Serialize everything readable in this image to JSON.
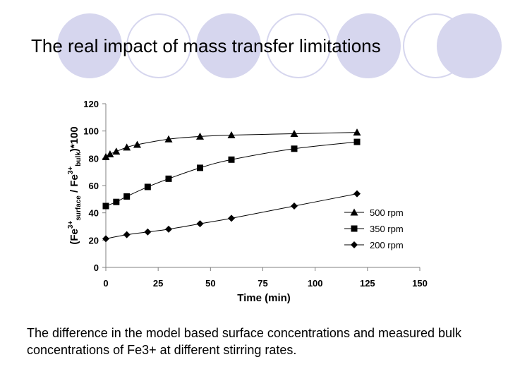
{
  "slide": {
    "title": "The real impact of mass transfer limitations",
    "caption": "The difference in the model based surface concentrations and measured bulk concentrations of Fe3+ at different stirring rates.",
    "accent_color": "#d6d6ee",
    "circle_colors": [
      "#d6d6ee",
      "#ffffff",
      "#d6d6ee",
      "#ffffff",
      "#d6d6ee",
      "#ffffff",
      "#d6d6ee"
    ]
  },
  "chart_data": {
    "type": "line",
    "title": "",
    "xlabel": "Time (min)",
    "ylabel_parts": {
      "open": "(Fe",
      "sup1": "3+",
      "sub1": "surface",
      "mid": " / Fe",
      "sup2": "3+",
      "sub2": "bulk",
      "close": ")*100"
    },
    "xlim": [
      0,
      150
    ],
    "ylim": [
      0,
      120
    ],
    "xticks": [
      "0",
      "25",
      "50",
      "75",
      "100",
      "125",
      "150"
    ],
    "yticks": [
      "0",
      "20",
      "40",
      "60",
      "80",
      "100",
      "120"
    ],
    "grid": false,
    "legend_position": "bottom-right",
    "series": [
      {
        "name": "500 rpm",
        "marker": "triangle",
        "x": [
          0,
          2,
          5,
          10,
          15,
          30,
          45,
          60,
          90,
          120
        ],
        "y": [
          81,
          83,
          85,
          88,
          90,
          94,
          96,
          97,
          98,
          99
        ]
      },
      {
        "name": "350 rpm",
        "marker": "square",
        "x": [
          0,
          5,
          10,
          20,
          30,
          45,
          60,
          90,
          120
        ],
        "y": [
          45,
          48,
          52,
          59,
          65,
          73,
          79,
          87,
          92
        ]
      },
      {
        "name": "200 rpm",
        "marker": "diamond",
        "x": [
          0,
          10,
          20,
          30,
          45,
          60,
          90,
          120
        ],
        "y": [
          21,
          24,
          26,
          28,
          32,
          36,
          45,
          54
        ]
      }
    ]
  }
}
